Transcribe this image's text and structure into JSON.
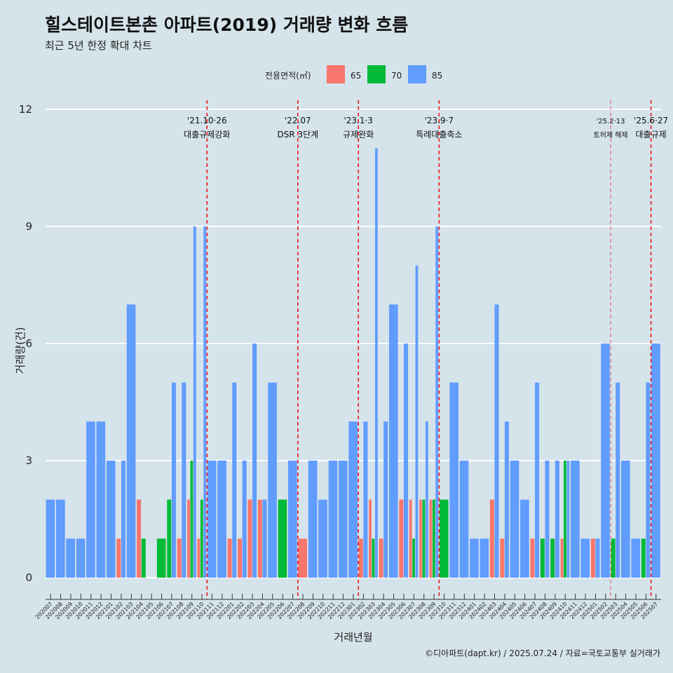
{
  "chart_data": {
    "type": "bar",
    "title": "힐스테이트본촌 아파트(2019) 거래량 변화 흐름",
    "subtitle": "최근 5년 한정 확대 차트",
    "xlabel": "거래년월",
    "ylabel": "거래량(건)",
    "caption": "©디아파트(dapt.kr) / 2025.07.24 / 자료=국토교통부 실거래가",
    "ylim": [
      0,
      12
    ],
    "yticks": [
      0,
      3,
      6,
      9,
      12
    ],
    "legend": {
      "title": "전용면적(㎡)",
      "placement": "top",
      "items": [
        {
          "label": "65",
          "color": "#f8766d"
        },
        {
          "label": "70",
          "color": "#00ba38"
        },
        {
          "label": "85",
          "color": "#619cff"
        }
      ]
    },
    "categories": [
      "202007",
      "202008",
      "202009",
      "202010",
      "202011",
      "202012",
      "202101",
      "202102",
      "202103",
      "202104",
      "202105",
      "202106",
      "202107",
      "202108",
      "202109",
      "202110",
      "202111",
      "202112",
      "202201",
      "202202",
      "202203",
      "202204",
      "202205",
      "202206",
      "202207",
      "202208",
      "202209",
      "202210",
      "202211",
      "202212",
      "202301",
      "202302",
      "202303",
      "202304",
      "202305",
      "202306",
      "202307",
      "202308",
      "202309",
      "202310",
      "202311",
      "202312",
      "202401",
      "202402",
      "202403",
      "202404",
      "202405",
      "202406",
      "202407",
      "202408",
      "202409",
      "202410",
      "202411",
      "202412",
      "202501",
      "202502",
      "202503",
      "202504",
      "202505",
      "202506",
      "202507"
    ],
    "series": [
      {
        "name": "65",
        "color": "#f8766d",
        "values": [
          0,
          0,
          0,
          0,
          0,
          0,
          0,
          1,
          0,
          2,
          0,
          0,
          0,
          1,
          2,
          1,
          0,
          0,
          1,
          1,
          2,
          2,
          0,
          0,
          0,
          1,
          0,
          0,
          0,
          0,
          0,
          1,
          2,
          1,
          0,
          2,
          2,
          2,
          2,
          0,
          0,
          0,
          0,
          0,
          2,
          1,
          0,
          0,
          1,
          0,
          0,
          1,
          0,
          0,
          1,
          0,
          0,
          0,
          0,
          0,
          0
        ]
      },
      {
        "name": "70",
        "color": "#00ba38",
        "values": [
          0,
          0,
          0,
          0,
          0,
          0,
          0,
          0,
          0,
          1,
          0,
          1,
          2,
          0,
          3,
          2,
          0,
          0,
          0,
          0,
          0,
          0,
          0,
          2,
          0,
          0,
          0,
          0,
          0,
          0,
          0,
          0,
          1,
          0,
          0,
          0,
          1,
          2,
          2,
          2,
          0,
          0,
          0,
          0,
          0,
          0,
          0,
          0,
          0,
          1,
          1,
          3,
          0,
          0,
          0,
          0,
          1,
          0,
          0,
          1,
          0
        ]
      },
      {
        "name": "85",
        "color": "#619cff",
        "values": [
          2,
          2,
          1,
          1,
          4,
          4,
          3,
          3,
          7,
          0,
          0,
          0,
          5,
          5,
          9,
          9,
          3,
          3,
          5,
          3,
          6,
          2,
          5,
          0,
          3,
          0,
          3,
          2,
          3,
          3,
          4,
          4,
          11,
          4,
          7,
          6,
          8,
          4,
          9,
          0,
          5,
          3,
          1,
          1,
          7,
          4,
          3,
          2,
          5,
          3,
          3,
          3,
          3,
          1,
          1,
          6,
          5,
          3,
          1,
          5,
          6
        ]
      }
    ],
    "events": [
      {
        "date": "'21.10·26",
        "label": "대출규제강화",
        "after": "202110"
      },
      {
        "date": "'22.07",
        "label": "DSR 3단계",
        "after": "202207"
      },
      {
        "date": "'23.1·3",
        "label": "규제완화",
        "after": "202301"
      },
      {
        "date": "'23.9·7",
        "label": "특례대출축소",
        "after": "202309"
      },
      {
        "date": "'25.2·13",
        "label": "토허제 해제",
        "after": "202502"
      },
      {
        "date": "'25.6·27",
        "label": "대출규제",
        "after": "202506"
      }
    ]
  }
}
